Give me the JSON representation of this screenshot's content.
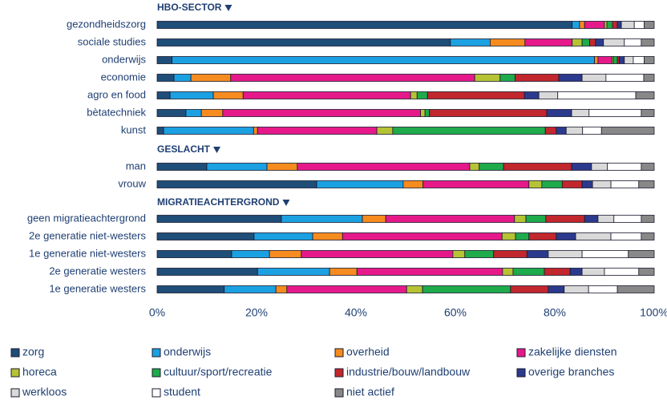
{
  "chart_data": {
    "type": "bar",
    "orientation": "horizontal",
    "stacked": true,
    "groups": [
      {
        "title": "HBO-SECTOR",
        "categories": [
          "gezondheidszorg",
          "sociale studies",
          "onderwijs",
          "economie",
          "agro en food",
          "bètatechniek",
          "kunst"
        ]
      },
      {
        "title": "GESLACHT",
        "categories": [
          "man",
          "vrouw"
        ]
      },
      {
        "title": "MIGRATIEACHTERGROND",
        "categories": [
          "geen migratieachtergrond",
          "2e generatie niet-westers",
          "1e generatie niet-westers",
          "2e generatie westers",
          "1e generatie westers"
        ]
      }
    ],
    "series": [
      {
        "name": "zorg",
        "color": "#1f4e79",
        "values": [
          83.5,
          59,
          3,
          3.4,
          2.6,
          5.8,
          1.3,
          10,
          32.1,
          25,
          19.5,
          15,
          20.2,
          13.5
        ]
      },
      {
        "name": "onderwijs",
        "color": "#1ba1e2",
        "values": [
          1.5,
          8,
          85,
          3.4,
          8.7,
          3.1,
          18.1,
          12.1,
          17.4,
          16.3,
          11.8,
          7.6,
          14.5,
          10.4
        ]
      },
      {
        "name": "overheid",
        "color": "#f68b1f",
        "values": [
          1,
          7,
          0.7,
          8,
          6,
          4.3,
          0.8,
          6.1,
          4,
          4.7,
          6,
          6.4,
          5.5,
          2.2
        ]
      },
      {
        "name": "zakelijke diensten",
        "color": "#e6198a",
        "values": [
          4,
          9.5,
          2.8,
          49.1,
          33.7,
          39.8,
          24,
          34.7,
          21.3,
          25.9,
          32.1,
          30.5,
          29.3,
          24.1
        ]
      },
      {
        "name": "horeca",
        "color": "#b5c334",
        "values": [
          0.5,
          2,
          0.3,
          5.1,
          1.3,
          0.9,
          3.2,
          1.9,
          2.6,
          2.3,
          2.7,
          2.4,
          2.1,
          3.2
        ]
      },
      {
        "name": "cultuur/sport/recreatie",
        "color": "#1faa4b",
        "values": [
          1.1,
          1.5,
          0.8,
          3,
          2.1,
          0.9,
          30.7,
          4.9,
          4.1,
          4,
          2.7,
          5.8,
          6.3,
          17.7
        ]
      },
      {
        "name": "industrie/bouw/landbouw",
        "color": "#c1272d",
        "values": [
          1,
          1.2,
          0.4,
          8.8,
          19.5,
          23.6,
          2.2,
          13.7,
          4,
          7.8,
          5.5,
          6.7,
          5.2,
          7.6
        ]
      },
      {
        "name": "overige branches",
        "color": "#2b3a8c",
        "values": [
          0.8,
          1.6,
          1,
          4.7,
          2.9,
          5,
          2,
          4,
          2.1,
          2.7,
          3.9,
          4.3,
          2.4,
          3.2
        ]
      },
      {
        "name": "werkloos",
        "color": "#d9d9d9",
        "values": [
          2.6,
          4.2,
          1.8,
          4.8,
          3.8,
          3.5,
          3.3,
          3.2,
          3.7,
          3.2,
          7.1,
          6.8,
          4.5,
          4.9
        ]
      },
      {
        "name": "student",
        "color": "#ffffff",
        "values": [
          2,
          3.4,
          2.2,
          7.6,
          15.7,
          10.5,
          3.8,
          6.8,
          5.6,
          5.5,
          6.1,
          9.3,
          6.9,
          5.8
        ]
      },
      {
        "name": "niet actief",
        "color": "#888888",
        "values": [
          2,
          2.6,
          2,
          2.1,
          3.7,
          2.6,
          10.6,
          2.6,
          3.1,
          2.6,
          2.6,
          5.2,
          3.1,
          7.4
        ]
      }
    ],
    "xlim": [
      0,
      100
    ],
    "xticks": [
      {
        "value": 0,
        "label": "0%"
      },
      {
        "value": 20,
        "label": "20%"
      },
      {
        "value": 40,
        "label": "40%"
      },
      {
        "value": 60,
        "label": "60%"
      },
      {
        "value": 80,
        "label": "80%"
      },
      {
        "value": 100,
        "label": "100%"
      }
    ],
    "legend": "bottom"
  }
}
